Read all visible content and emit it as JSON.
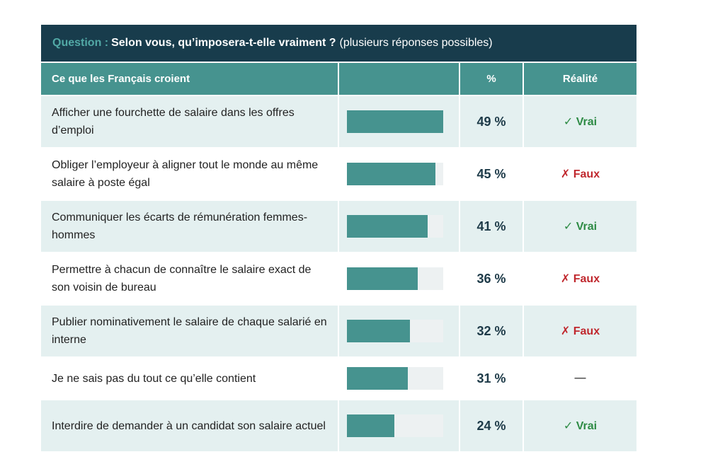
{
  "question": {
    "label": "Question :",
    "text": "Selon vous, qu’imposera-t-elle vraiment ?",
    "note": "(plusieurs réponses possibles)"
  },
  "columns": [
    "Ce que les Français croient",
    "",
    "%",
    "Réalité"
  ],
  "colors": {
    "header": "#183c4c",
    "accent": "#46938f",
    "vrai": "#2e8b45",
    "faux": "#c0282e"
  },
  "chart_data": {
    "type": "bar",
    "categories": [
      "Afficher une fourchette de salaire dans les offres d’emploi",
      "Obliger l’employeur à aligner tout le monde au même salaire à poste égal",
      "Communiquer les écarts de rémunération femmes-hommes",
      "Permettre à chacun de connaître le salaire exact de son voisin de bureau",
      "Publier nominativement le salaire de chaque salarié en interne",
      "Je ne sais pas du tout ce qu’elle contient",
      "Interdire de demander à un candidat son salaire actuel"
    ],
    "values": [
      49,
      45,
      41,
      36,
      32,
      31,
      24
    ],
    "value_labels": [
      "49 %",
      "45 %",
      "41 %",
      "36 %",
      "32 %",
      "31 %",
      "24 %"
    ],
    "reality": [
      "✓ Vrai",
      "✗ Faux",
      "✓ Vrai",
      "✗ Faux",
      "✗ Faux",
      "—",
      "✓ Vrai"
    ],
    "xlim": [
      0,
      49
    ]
  }
}
